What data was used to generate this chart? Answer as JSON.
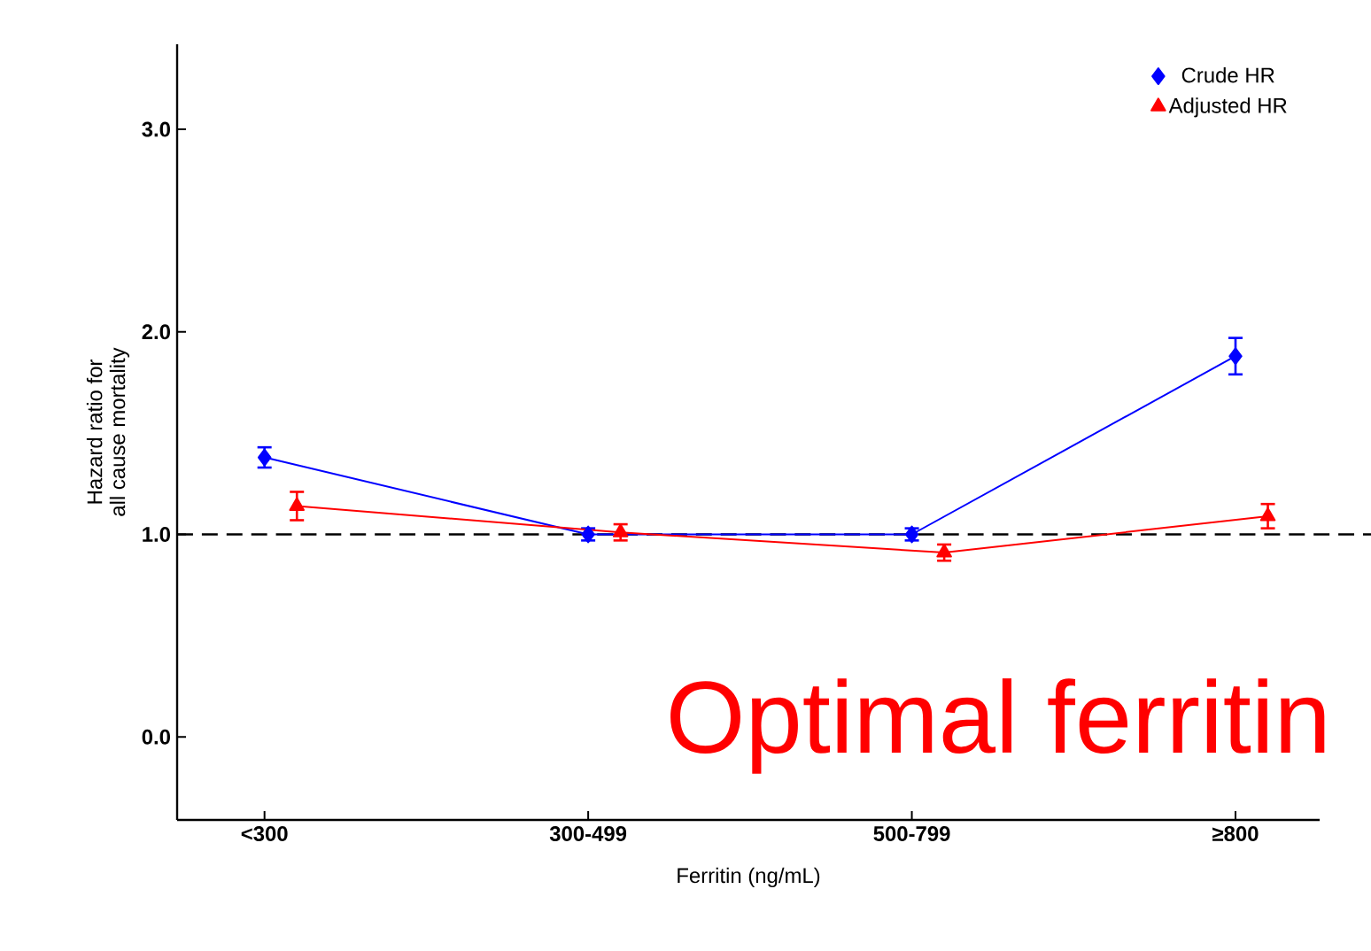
{
  "chart_data": {
    "type": "line",
    "xlabel": "Ferritin (ng/mL)",
    "ylabel": "Hazard ratio for\nall cause mortality",
    "categories": [
      "<300",
      "300-499",
      "500-799",
      "≥800"
    ],
    "series": [
      {
        "name": "Crude HR",
        "color": "#0000ff",
        "marker": "diamond",
        "values": [
          1.38,
          1.0,
          1.0,
          1.88
        ],
        "errors": [
          0.05,
          0.03,
          0.03,
          0.09
        ]
      },
      {
        "name": "Adjusted HR",
        "color": "#ff0000",
        "marker": "triangle",
        "values": [
          1.14,
          1.01,
          0.91,
          1.09
        ],
        "errors": [
          0.07,
          0.04,
          0.04,
          0.06
        ]
      }
    ],
    "ylim": [
      -0.41,
      3.42
    ],
    "yticks": [
      {
        "value": 0,
        "label": "0.0"
      },
      {
        "value": 1,
        "label": "1.0"
      },
      {
        "value": 2,
        "label": "2.0"
      },
      {
        "value": 3,
        "label": "3.0"
      }
    ],
    "ref_lines": [
      {
        "axis": "y",
        "value": 1.0,
        "color": "#000000",
        "line_style": "dashed"
      }
    ],
    "legend": "top right",
    "grid": false,
    "annotations": [
      "Optimal ferritin"
    ]
  }
}
